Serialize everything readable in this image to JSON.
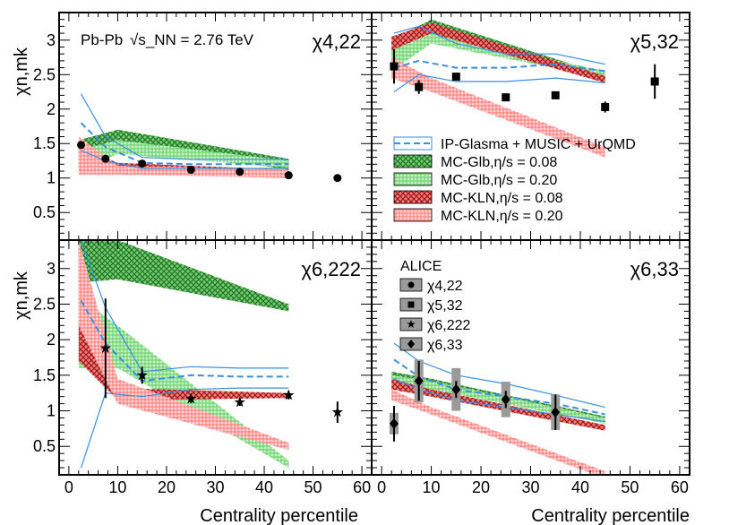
{
  "collision_label": "Pb-Pb",
  "energy_label": "√s_NN = 2.76 TeV",
  "colors": {
    "ipglasma": "#3a8fe0",
    "mcglb_08": "#1f9a1f",
    "mcglb_20": "#8be08b",
    "mckln_08": "#cc1f1f",
    "mckln_20": "#ff8a8a",
    "alice_marker": "#000000",
    "alice_syst": "#9a9a9a"
  },
  "legend_models": [
    {
      "key": "ipglasma",
      "label": "IP-Glasma + MUSIC + UrQMD"
    },
    {
      "key": "mcglb_08",
      "label": "MC-Glb,η/s = 0.08"
    },
    {
      "key": "mcglb_20",
      "label": "MC-Glb,η/s = 0.20"
    },
    {
      "key": "mckln_08",
      "label": "MC-KLN,η/s = 0.08"
    },
    {
      "key": "mckln_20",
      "label": "MC-KLN,η/s = 0.20"
    }
  ],
  "legend_alice": {
    "title": "ALICE",
    "entries": [
      {
        "marker": "circle",
        "label": "χ4,22"
      },
      {
        "marker": "square",
        "label": "χ5,32"
      },
      {
        "marker": "star",
        "label": "χ6,222"
      },
      {
        "marker": "diamond",
        "label": "χ6,33"
      }
    ]
  },
  "chart_data": [
    {
      "type": "line",
      "panel": "top-left",
      "title": "χ4,22",
      "xlabel": "",
      "ylabel": "χn,mk",
      "xlim": [
        -2,
        62
      ],
      "ylim": [
        0.1,
        3.4
      ],
      "xticks": [],
      "yticks": [
        0.5,
        1,
        1.5,
        2,
        2.5,
        3
      ],
      "alice_points": {
        "marker": "circle",
        "x": [
          2.5,
          7.5,
          15,
          25,
          35,
          45,
          55
        ],
        "y": [
          1.48,
          1.28,
          1.21,
          1.12,
          1.09,
          1.04,
          1.0
        ],
        "err": [
          0.03,
          0.02,
          0.02,
          0.02,
          0.02,
          0.02,
          0.02
        ]
      },
      "ipglasma": {
        "x": [
          2.5,
          7.5,
          15,
          25,
          35,
          45
        ],
        "mid": [
          1.8,
          1.45,
          1.22,
          1.2,
          1.2,
          1.2
        ],
        "lo": [
          1.4,
          1.25,
          1.14,
          1.14,
          1.14,
          1.14
        ],
        "hi": [
          2.22,
          1.6,
          1.3,
          1.27,
          1.27,
          1.27
        ]
      },
      "hydro_bands": [
        {
          "key": "mcglb_08",
          "x": [
            2,
            10,
            45
          ],
          "lo": [
            1.35,
            1.5,
            1.12
          ],
          "hi": [
            1.55,
            1.7,
            1.28
          ]
        },
        {
          "key": "mcglb_20",
          "x": [
            2,
            10,
            45
          ],
          "lo": [
            1.1,
            1.35,
            1.15
          ],
          "hi": [
            1.4,
            1.55,
            1.25
          ]
        },
        {
          "key": "mckln_08",
          "x": [
            2,
            10,
            45
          ],
          "lo": [
            1.15,
            1.1,
            1.02
          ],
          "hi": [
            1.45,
            1.22,
            1.12
          ]
        },
        {
          "key": "mckln_20",
          "x": [
            2,
            10,
            45
          ],
          "lo": [
            1.05,
            1.05,
            1.0
          ],
          "hi": [
            1.6,
            1.18,
            1.12
          ]
        }
      ]
    },
    {
      "type": "line",
      "panel": "top-right",
      "title": "χ5,32",
      "xlabel": "",
      "ylabel": "",
      "xlim": [
        -2,
        62
      ],
      "ylim": [
        0.1,
        3.4
      ],
      "xticks": [],
      "yticks": [],
      "alice_points": {
        "marker": "square",
        "x": [
          2.5,
          7.5,
          15,
          25,
          35,
          45,
          55
        ],
        "y": [
          2.62,
          2.32,
          2.47,
          2.17,
          2.2,
          2.03,
          2.4
        ],
        "err": [
          0.25,
          0.1,
          0.04,
          0.04,
          0.04,
          0.08,
          0.25
        ]
      },
      "ipglasma": {
        "x": [
          2.5,
          7.5,
          15,
          25,
          35,
          45
        ],
        "mid": [
          2.6,
          2.7,
          2.6,
          2.6,
          2.65,
          2.55
        ],
        "lo": [
          2.25,
          2.5,
          2.4,
          2.4,
          2.45,
          2.38
        ],
        "hi": [
          3.1,
          3.2,
          2.95,
          2.8,
          2.8,
          2.65
        ]
      },
      "hydro_bands": [
        {
          "key": "mcglb_08",
          "x": [
            2,
            10,
            45
          ],
          "lo": [
            2.75,
            3.15,
            2.4
          ],
          "hi": [
            3.0,
            3.3,
            2.5
          ]
        },
        {
          "key": "mcglb_20",
          "x": [
            2,
            10,
            45
          ],
          "lo": [
            2.55,
            2.95,
            2.45
          ],
          "hi": [
            2.95,
            3.1,
            2.55
          ]
        },
        {
          "key": "mckln_08",
          "x": [
            2,
            10,
            45
          ],
          "lo": [
            2.85,
            3.1,
            2.38
          ],
          "hi": [
            3.05,
            3.25,
            2.48
          ]
        },
        {
          "key": "mckln_20",
          "x": [
            2,
            10,
            45
          ],
          "lo": [
            2.45,
            2.25,
            1.3
          ],
          "hi": [
            2.75,
            2.45,
            1.45
          ]
        }
      ]
    },
    {
      "type": "line",
      "panel": "bottom-left",
      "title": "χ6,222",
      "xlabel": "Centrality percentile",
      "ylabel": "χn,mk",
      "xlim": [
        -2,
        62
      ],
      "ylim": [
        0.1,
        3.4
      ],
      "xticks": [
        0,
        10,
        20,
        30,
        40,
        50,
        60
      ],
      "yticks": [
        0.5,
        1,
        1.5,
        2,
        2.5,
        3
      ],
      "alice_points": {
        "marker": "star",
        "x": [
          7.5,
          15,
          25,
          35,
          45,
          55
        ],
        "y": [
          1.88,
          1.5,
          1.17,
          1.12,
          1.22,
          0.98
        ],
        "err": [
          0.7,
          0.12,
          0.06,
          0.05,
          0.06,
          0.15
        ]
      },
      "ipglasma": {
        "x": [
          2.5,
          7.5,
          15,
          25,
          35,
          45
        ],
        "mid": [
          2.55,
          1.95,
          1.42,
          1.5,
          1.48,
          1.48
        ],
        "lo": [
          0.2,
          1.25,
          1.2,
          1.3,
          1.32,
          1.32
        ],
        "hi": [
          3.4,
          2.45,
          1.55,
          1.62,
          1.6,
          1.6
        ]
      },
      "hydro_bands": [
        {
          "key": "mcglb_08",
          "x": [
            2,
            10,
            45
          ],
          "lo": [
            2.8,
            2.85,
            2.4
          ],
          "hi": [
            3.4,
            3.4,
            2.5
          ]
        },
        {
          "key": "mcglb_20",
          "x": [
            2,
            10,
            45
          ],
          "lo": [
            1.6,
            1.6,
            0.2
          ],
          "hi": [
            2.6,
            2.2,
            0.3
          ]
        },
        {
          "key": "mckln_08",
          "x": [
            2,
            10,
            45
          ],
          "lo": [
            1.7,
            1.15,
            1.18
          ],
          "hi": [
            3.4,
            1.32,
            1.25
          ]
        },
        {
          "key": "mckln_20",
          "x": [
            2,
            10,
            45
          ],
          "lo": [
            2.2,
            1.1,
            0.45
          ],
          "hi": [
            3.4,
            1.45,
            0.55
          ]
        }
      ]
    },
    {
      "type": "line",
      "panel": "bottom-right",
      "title": "χ6,33",
      "xlabel": "Centrality percentile",
      "ylabel": "",
      "xlim": [
        -2,
        62
      ],
      "ylim": [
        0.1,
        3.4
      ],
      "xticks": [
        0,
        10,
        20,
        30,
        40,
        50,
        60
      ],
      "yticks": [],
      "alice_points": {
        "marker": "diamond",
        "x": [
          2.5,
          7.5,
          15,
          25,
          35
        ],
        "y": [
          0.82,
          1.42,
          1.3,
          1.16,
          0.98
        ],
        "err": [
          0.25,
          0.28,
          0.12,
          0.12,
          0.25
        ],
        "syst": [
          0.15,
          0.3,
          0.3,
          0.25,
          0.25
        ]
      },
      "ipglasma": {
        "x": [
          2.5,
          7.5,
          15,
          25,
          35,
          45
        ],
        "mid": [
          1.72,
          1.48,
          1.3,
          1.2,
          1.1,
          0.95
        ],
        "lo": [
          1.45,
          1.3,
          1.15,
          1.05,
          0.95,
          0.85
        ],
        "hi": [
          1.95,
          1.7,
          1.5,
          1.38,
          1.22,
          1.05
        ]
      },
      "hydro_bands": [
        {
          "key": "mcglb_08",
          "x": [
            2,
            10,
            45
          ],
          "lo": [
            1.45,
            1.35,
            0.82
          ],
          "hi": [
            1.55,
            1.45,
            0.92
          ]
        },
        {
          "key": "mcglb_20",
          "x": [
            2,
            10,
            45
          ],
          "lo": [
            1.4,
            1.3,
            0.82
          ],
          "hi": [
            1.5,
            1.42,
            0.9
          ]
        },
        {
          "key": "mckln_08",
          "x": [
            2,
            10,
            45
          ],
          "lo": [
            1.3,
            1.2,
            0.72
          ],
          "hi": [
            1.45,
            1.3,
            0.8
          ]
        },
        {
          "key": "mckln_20",
          "x": [
            2,
            10,
            45
          ],
          "lo": [
            1.15,
            0.95,
            0.05
          ],
          "hi": [
            1.3,
            1.05,
            0.15
          ]
        }
      ]
    }
  ]
}
